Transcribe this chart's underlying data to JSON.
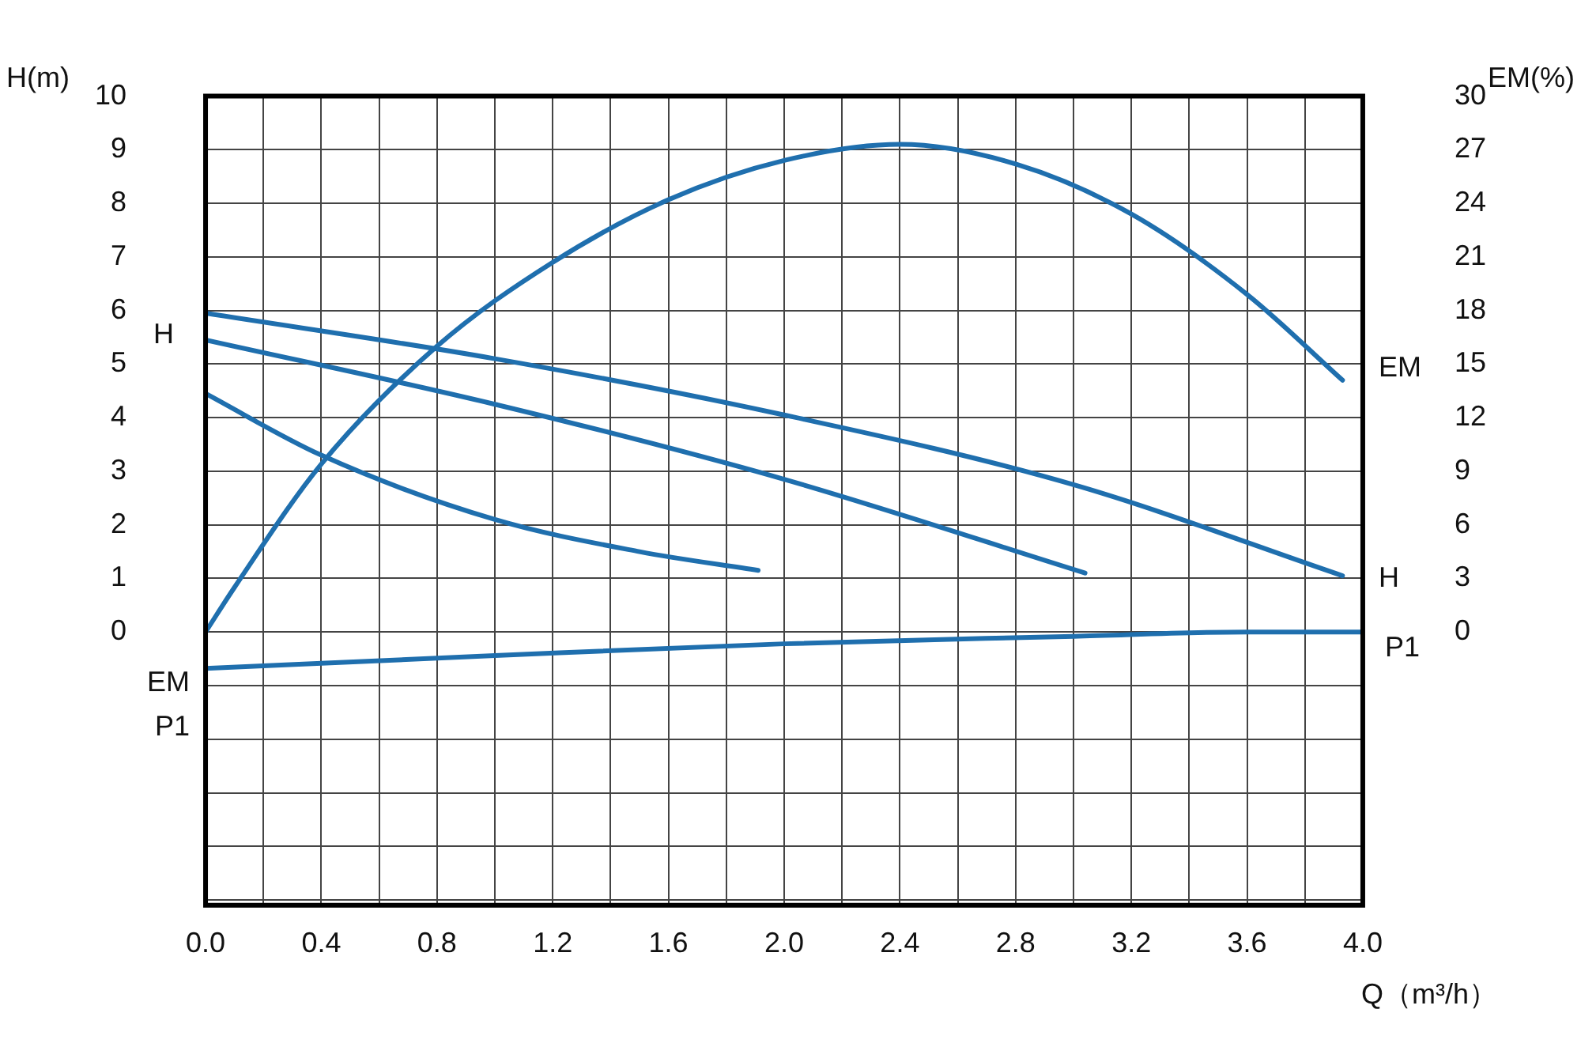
{
  "chart_data": {
    "type": "line",
    "xlabel": "Q（m³/h）",
    "ylabel": "H(m)",
    "y2label": "EM(%)",
    "xlim": [
      0,
      4
    ],
    "xticks": [
      {
        "value": 0,
        "label": "0.0"
      },
      {
        "value": 0.2,
        "label": null
      },
      0.4,
      {
        "value": 0.6,
        "label": null
      },
      0.8,
      {
        "value": 1.0,
        "label": null
      },
      1.2,
      {
        "value": 1.4,
        "label": null
      },
      1.6,
      {
        "value": 1.8,
        "label": null
      },
      {
        "value": 2,
        "label": "2.0"
      },
      {
        "value": 2.2,
        "label": null
      },
      2.4,
      {
        "value": 2.6,
        "label": null
      },
      2.8,
      {
        "value": 3.0,
        "label": null
      },
      3.2,
      {
        "value": 3.4,
        "label": null
      },
      3.6,
      {
        "value": 3.8,
        "label": null
      },
      {
        "value": 4,
        "label": "4.0"
      }
    ],
    "ylim": [
      -5.1,
      10
    ],
    "yticks": [
      {
        "value": -5,
        "label": null
      },
      {
        "value": -4,
        "label": null
      },
      {
        "value": -3,
        "label": null
      },
      {
        "value": -2,
        "label": null
      },
      {
        "value": -1,
        "label": null
      },
      0,
      1,
      2,
      3,
      4,
      5,
      6,
      7,
      8,
      9,
      10
    ],
    "y2lim": [
      -15.3,
      30
    ],
    "y2ticks": [
      0,
      3,
      6,
      9,
      12,
      15,
      18,
      21,
      24,
      27,
      30
    ],
    "grid": true,
    "legend": false,
    "marker": "none",
    "line_style": "solid",
    "series": [
      {
        "color": "#1f6fae",
        "x": [
          0,
          1,
          2,
          3,
          3.93
        ],
        "values": [
          5.95,
          5.1,
          4.05,
          2.75,
          1.05
        ]
      },
      {
        "color": "#1f6fae",
        "x": [
          0,
          1,
          2,
          3.04
        ],
        "values": [
          5.45,
          4.25,
          2.85,
          1.1
        ]
      },
      {
        "color": "#1f6fae",
        "x": [
          0,
          0.4,
          1,
          1.5,
          1.91
        ],
        "values": [
          4.45,
          3.3,
          2.1,
          1.5,
          1.15
        ]
      },
      {
        "color": "#1f6fae",
        "axis": "y2",
        "x": [
          0,
          0.1,
          0.4,
          0.8,
          1.2,
          1.6,
          2.0,
          2.4,
          2.8,
          3.2,
          3.6,
          3.93
        ],
        "values": [
          0,
          2.5,
          9.4,
          16.0,
          20.7,
          24.2,
          26.4,
          27.3,
          26.2,
          23.4,
          18.9,
          14.1
        ]
      },
      {
        "color": "#1f6fae",
        "x": [
          0,
          1,
          2,
          3,
          3.6,
          4
        ],
        "values": [
          -0.68,
          -0.44,
          -0.22,
          -0.08,
          0,
          0
        ]
      }
    ],
    "annotations": [
      "H",
      "EM",
      "H",
      "EM",
      "P1",
      "P1"
    ]
  }
}
